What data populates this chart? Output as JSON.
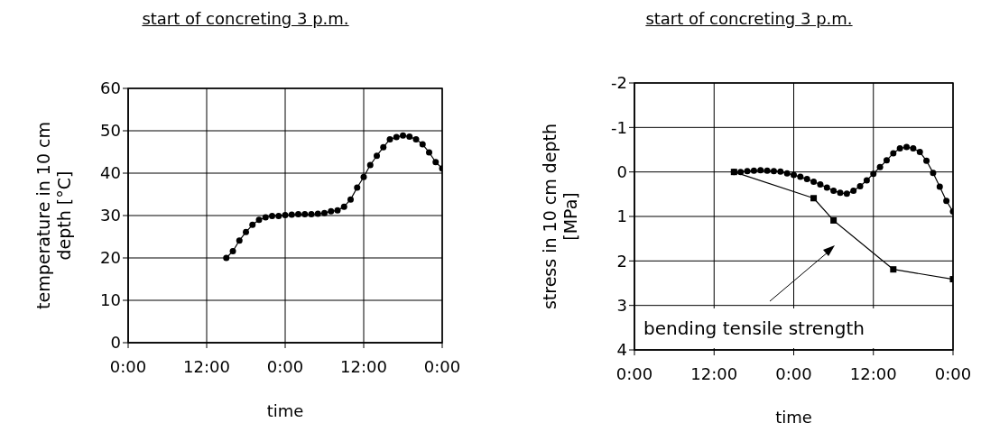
{
  "chart_data": [
    {
      "type": "line",
      "title": "start of concreting 3 p.m.",
      "xlabel": "time",
      "ylabel": "temperature in 10 cm depth [°C]",
      "xlim": [
        "--01-01T00:00",
        "--01-03T00:00"
      ],
      "xticks": [
        {
          "value": "--01-01T00:00",
          "label": "0:00"
        },
        {
          "value": "--01-01T12:00",
          "label": "12:00"
        },
        {
          "value": "--01-02T00:00",
          "label": "0:00"
        },
        {
          "value": "--01-02T12:00",
          "label": "12:00"
        },
        {
          "value": "--01-03T00:00",
          "label": "0:00"
        }
      ],
      "ylim": [
        0,
        60
      ],
      "yticks": [
        0,
        10,
        20,
        30,
        40,
        50,
        60
      ],
      "grid": true,
      "marker": "circle",
      "x": [
        "--01-01T15:00",
        "--01-01T16:00",
        "--01-01T17:00",
        "--01-01T18:00",
        "--01-01T19:00",
        "--01-01T20:00",
        "--01-01T21:00",
        "--01-01T22:00",
        "--01-01T23:00",
        "--01-02T00:00",
        "--01-02T01:00",
        "--01-02T02:00",
        "--01-02T03:00",
        "--01-02T04:00",
        "--01-02T05:00",
        "--01-02T06:00",
        "--01-02T07:00",
        "--01-02T08:00",
        "--01-02T09:00",
        "--01-02T10:00",
        "--01-02T11:00",
        "--01-02T12:00",
        "--01-02T13:00",
        "--01-02T14:00",
        "--01-02T15:00",
        "--01-02T16:00",
        "--01-02T17:00",
        "--01-02T18:00",
        "--01-02T19:00",
        "--01-02T20:00",
        "--01-02T21:00",
        "--01-02T22:00",
        "--01-02T23:00",
        "--01-03T00:00"
      ],
      "series": [
        {
          "color": "#000000",
          "values": [
            20.0,
            21.6,
            24.1,
            26.1,
            27.8,
            29.0,
            29.6,
            29.9,
            29.9,
            30.1,
            30.2,
            30.3,
            30.3,
            30.3,
            30.4,
            30.6,
            31.0,
            31.2,
            32.1,
            33.8,
            36.6,
            39.1,
            41.9,
            44.1,
            46.1,
            48.0,
            48.5,
            48.9,
            48.6,
            48.0,
            46.8,
            44.9,
            42.6,
            41.1
          ]
        }
      ]
    },
    {
      "type": "line",
      "title": "start of concreting 3 p.m.",
      "xlabel": "time",
      "ylabel": "stress in 10 cm depth [MPa]",
      "xlim": [
        "--01-01T00:00",
        "--01-03T00:00"
      ],
      "xticks": [
        {
          "value": "--01-01T00:00",
          "label": "0:00"
        },
        {
          "value": "--01-01T12:00",
          "label": "12:00"
        },
        {
          "value": "--01-02T00:00",
          "label": "0:00"
        },
        {
          "value": "--01-02T12:00",
          "label": "12:00"
        },
        {
          "value": "--01-03T00:00",
          "label": "0:00"
        }
      ],
      "ylim": [
        4,
        -2
      ],
      "yticks": [
        -2,
        -1,
        0,
        1,
        2,
        3,
        4
      ],
      "grid": true,
      "annotations": [
        "bending tensile strength"
      ],
      "series": [
        {
          "color": "#000000",
          "marker": "circle",
          "x": [
            "--01-01T15:00",
            "--01-01T16:00",
            "--01-01T17:00",
            "--01-01T18:00",
            "--01-01T19:00",
            "--01-01T20:00",
            "--01-01T21:00",
            "--01-01T22:00",
            "--01-01T23:00",
            "--01-02T00:00",
            "--01-02T01:00",
            "--01-02T02:00",
            "--01-02T03:00",
            "--01-02T04:00",
            "--01-02T05:00",
            "--01-02T06:00",
            "--01-02T07:00",
            "--01-02T08:00",
            "--01-02T09:00",
            "--01-02T10:00",
            "--01-02T11:00",
            "--01-02T12:00",
            "--01-02T13:00",
            "--01-02T14:00",
            "--01-02T15:00",
            "--01-02T16:00",
            "--01-02T17:00",
            "--01-02T18:00",
            "--01-02T19:00",
            "--01-02T20:00",
            "--01-02T21:00",
            "--01-02T22:00",
            "--01-02T23:00",
            "--01-03T00:00"
          ],
          "values": [
            0,
            0,
            -0.02,
            -0.03,
            -0.04,
            -0.03,
            -0.02,
            -0.01,
            0.03,
            0.07,
            0.11,
            0.16,
            0.22,
            0.28,
            0.35,
            0.42,
            0.47,
            0.49,
            0.42,
            0.32,
            0.19,
            0.04,
            -0.11,
            -0.26,
            -0.42,
            -0.53,
            -0.56,
            -0.53,
            -0.45,
            -0.25,
            0.02,
            0.33,
            0.65,
            0.89
          ]
        },
        {
          "color": "#000000",
          "marker": "square",
          "x": [
            "--01-01T15:00",
            "--01-02T03:00",
            "--01-02T06:00",
            "--01-02T15:00",
            "--01-03T00:00"
          ],
          "values": [
            0,
            0.59,
            1.09,
            2.19,
            2.41
          ]
        }
      ]
    }
  ]
}
